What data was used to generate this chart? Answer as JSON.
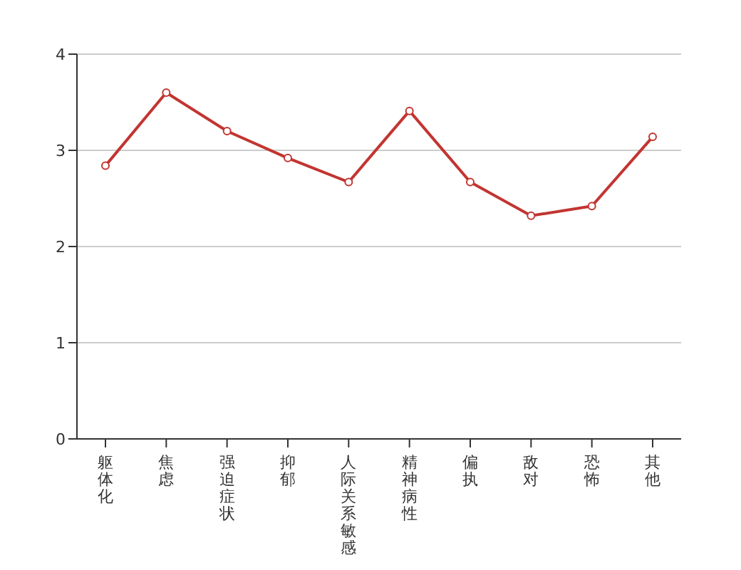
{
  "chart_data": {
    "type": "line",
    "categories": [
      "躯体化",
      "焦虑",
      "强迫症状",
      "抑郁",
      "人际关系敏感",
      "精神病性",
      "偏执",
      "敌对",
      "恐怖",
      "其他"
    ],
    "series": [
      {
        "color": "#c23531",
        "values": [
          2.84,
          3.6,
          3.2,
          2.92,
          2.67,
          3.41,
          2.67,
          2.32,
          2.42,
          3.14
        ]
      }
    ],
    "ylim": [
      0,
      4
    ],
    "yticks": [
      0,
      1,
      2,
      3,
      4
    ],
    "grid": "y",
    "marker": "circle"
  }
}
